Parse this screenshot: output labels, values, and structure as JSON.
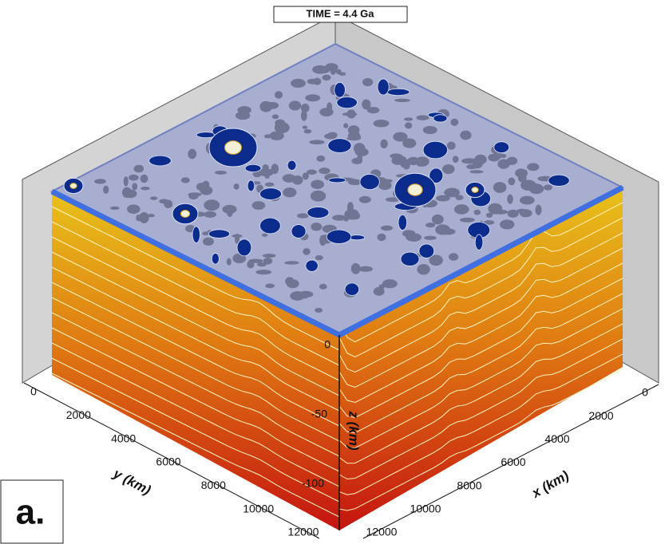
{
  "title": "TIME = 4.4 Ga",
  "panel_label": "a.",
  "axes": {
    "x": {
      "label": "x (km)",
      "ticks": [
        0,
        2000,
        4000,
        6000,
        8000,
        10000,
        12000
      ]
    },
    "y": {
      "label": "y (km)",
      "ticks": [
        0,
        2000,
        4000,
        6000,
        8000,
        10000,
        12000
      ]
    },
    "z": {
      "label": "z (km)",
      "ticks": [
        0,
        -50,
        -100
      ]
    }
  }
}
